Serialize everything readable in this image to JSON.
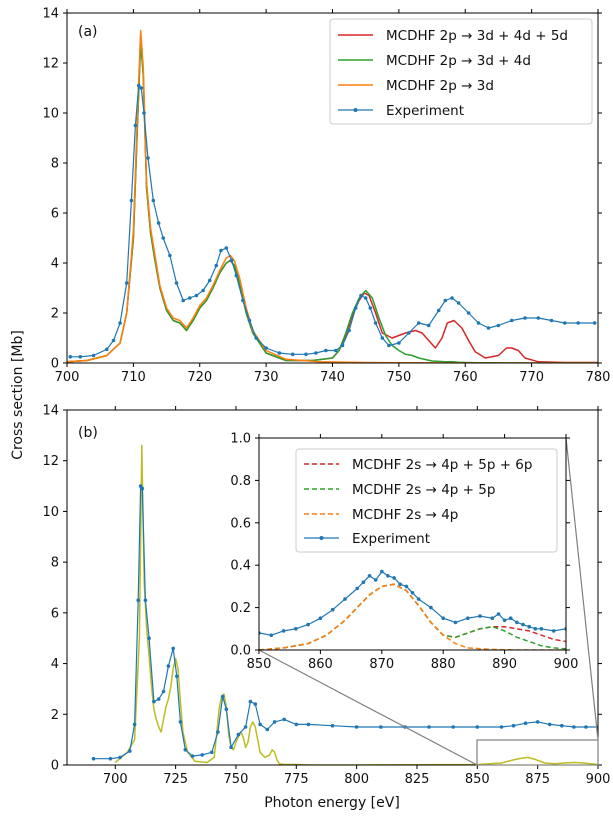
{
  "colors": {
    "n5": "#d62728",
    "n4": "#2ca02c",
    "n3": "#ff7f0e",
    "exp": "#1f77b4",
    "overview": "#bcbd22",
    "axis": "#000000",
    "zoom": "#808080"
  },
  "shared": {
    "ylabel": "Cross section [Mb]",
    "xlabel": "Photon energy [eV]"
  },
  "chart_data": [
    {
      "type": "line",
      "panel_label": "(a)",
      "xlim": [
        700,
        780
      ],
      "ylim": [
        0,
        14
      ],
      "xticks": [
        700,
        710,
        720,
        730,
        740,
        750,
        760,
        770,
        780
      ],
      "yticks": [
        0,
        2,
        4,
        6,
        8,
        10,
        12,
        14
      ],
      "grid": false,
      "legend_position": "top-right",
      "legend": [
        "MCDHF 2p → 3d + 4d + 5d",
        "MCDHF 2p → 3d + 4d",
        "MCDHF 2p → 3d",
        "Experiment"
      ],
      "series": [
        {
          "name": "MCDHF 2p → 3d + 4d + 5d",
          "color": "#d62728",
          "x": [
            700,
            703,
            706,
            708,
            709,
            710,
            710.6,
            711.1,
            711.5,
            712,
            712.6,
            713.2,
            714,
            715,
            716,
            717,
            718,
            719,
            720,
            721,
            722,
            723,
            724,
            724.6,
            725.2,
            726,
            727,
            728,
            730,
            733,
            737,
            740,
            741,
            742,
            743,
            744,
            744.8,
            745.5,
            746.5,
            747.5,
            749,
            751,
            752.5,
            753.5,
            754.5,
            755.5,
            756.5,
            757.3,
            758.3,
            759.5,
            760.5,
            761.5,
            763,
            765,
            766.2,
            767,
            768,
            769,
            771,
            775,
            780
          ],
          "y": [
            0.05,
            0.1,
            0.3,
            0.8,
            2,
            5,
            9.5,
            13.1,
            11.5,
            7,
            5.2,
            4.2,
            3,
            2.1,
            1.7,
            1.6,
            1.3,
            1.7,
            2.2,
            2.5,
            3,
            3.6,
            4,
            4.1,
            3.9,
            3.2,
            2,
            1.2,
            0.4,
            0.1,
            0.1,
            0.2,
            0.5,
            1.1,
            1.9,
            2.5,
            2.8,
            2.7,
            2,
            1.2,
            1,
            1.2,
            1.3,
            1.2,
            0.9,
            0.6,
            1,
            1.6,
            1.7,
            1.4,
            0.9,
            0.45,
            0.2,
            0.3,
            0.6,
            0.6,
            0.5,
            0.2,
            0.05,
            0.02,
            0.02
          ]
        },
        {
          "name": "MCDHF 2p → 3d + 4d",
          "color": "#2ca02c",
          "x": [
            700,
            703,
            706,
            708,
            709,
            710,
            710.6,
            711.1,
            711.5,
            712,
            712.6,
            713.2,
            714,
            715,
            716,
            717,
            718,
            719,
            720,
            721,
            722,
            723,
            724,
            724.6,
            725.2,
            726,
            727,
            728,
            730,
            733,
            737,
            740,
            741,
            742,
            743,
            744,
            745,
            746,
            747,
            748,
            749,
            750,
            751,
            752,
            753,
            755,
            757,
            758,
            759,
            760,
            762,
            765,
            770,
            780
          ],
          "y": [
            0.05,
            0.1,
            0.3,
            0.8,
            2,
            5,
            9.5,
            12.8,
            11.5,
            7,
            5.2,
            4.2,
            3,
            2.1,
            1.7,
            1.6,
            1.3,
            1.7,
            2.2,
            2.5,
            3,
            3.6,
            4,
            4.1,
            3.9,
            3.2,
            2,
            1.2,
            0.4,
            0.1,
            0.1,
            0.2,
            0.5,
            1.2,
            2,
            2.6,
            2.9,
            2.6,
            1.8,
            1.1,
            0.7,
            0.5,
            0.35,
            0.3,
            0.2,
            0.08,
            0.05,
            0.05,
            0.03,
            0.02,
            0.01,
            0.01,
            0,
            0
          ]
        },
        {
          "name": "MCDHF 2p → 3d",
          "color": "#ff7f0e",
          "x": [
            700,
            703,
            706,
            708,
            709,
            710,
            710.6,
            711.1,
            711.5,
            712,
            712.6,
            713.2,
            714,
            715,
            716,
            717,
            718,
            719,
            720,
            721,
            722,
            723,
            724,
            724.6,
            725.2,
            726,
            727,
            728,
            730,
            733,
            738,
            745,
            760,
            780
          ],
          "y": [
            0.05,
            0.1,
            0.3,
            0.8,
            2,
            5.3,
            10,
            13.3,
            11.8,
            7.2,
            5.4,
            4.4,
            3.1,
            2.2,
            1.8,
            1.7,
            1.4,
            1.8,
            2.3,
            2.6,
            3.1,
            3.7,
            4.2,
            4.3,
            4.1,
            3.4,
            2.2,
            1.3,
            0.5,
            0.15,
            0.05,
            0.02,
            0,
            0
          ]
        },
        {
          "name": "Experiment",
          "color": "#1f77b4",
          "markers": true,
          "x": [
            700.5,
            702,
            704,
            706,
            707,
            708,
            709,
            709.7,
            710.3,
            710.8,
            711.2,
            711.6,
            712.2,
            713,
            713.8,
            714.5,
            715.5,
            716.5,
            717.5,
            718.5,
            719.5,
            720.5,
            721.5,
            722.5,
            723.2,
            724,
            724.8,
            725.5,
            726.5,
            727.5,
            728.5,
            730,
            732,
            734,
            736,
            737.5,
            739,
            740.5,
            741.5,
            742.5,
            743.5,
            744.3,
            745,
            745.7,
            746.5,
            747.5,
            748.5,
            750,
            751.5,
            753,
            754.5,
            756,
            757,
            758,
            759,
            760.5,
            762,
            763.5,
            765,
            767,
            769,
            771,
            773,
            775,
            777,
            779.5
          ],
          "y": [
            0.25,
            0.25,
            0.3,
            0.55,
            0.9,
            1.6,
            3.2,
            6.5,
            9.5,
            11.1,
            11,
            10,
            8.2,
            6.5,
            5.6,
            5,
            4.3,
            3.2,
            2.5,
            2.6,
            2.7,
            2.9,
            3.3,
            3.9,
            4.5,
            4.6,
            4.1,
            3.5,
            2.5,
            1.7,
            1,
            0.6,
            0.4,
            0.35,
            0.35,
            0.4,
            0.5,
            0.5,
            0.7,
            1.3,
            2.2,
            2.7,
            2.6,
            2.2,
            1.6,
            1,
            0.7,
            0.8,
            1.2,
            1.6,
            1.5,
            2.1,
            2.5,
            2.6,
            2.4,
            2,
            1.6,
            1.4,
            1.5,
            1.7,
            1.8,
            1.8,
            1.7,
            1.6,
            1.6,
            1.6
          ]
        }
      ]
    },
    {
      "type": "line",
      "panel_label": "(b)",
      "xlim": [
        680,
        900
      ],
      "ylim": [
        0,
        14
      ],
      "xticks": [
        700,
        725,
        750,
        775,
        800,
        825,
        850,
        875,
        900
      ],
      "yticks": [
        0,
        2,
        4,
        6,
        8,
        10,
        12,
        14
      ],
      "grid": false,
      "series": [
        {
          "color": "#bcbd22",
          "x": [
            700,
            705,
            708,
            710,
            711,
            712,
            713,
            714,
            715,
            716,
            717,
            718,
            719,
            720,
            721,
            722,
            723,
            724,
            725,
            726,
            727,
            728,
            730,
            733,
            738,
            741,
            742,
            743,
            744,
            745,
            746,
            747,
            748,
            749,
            750,
            751,
            752,
            753,
            754,
            755,
            756,
            757,
            758,
            759,
            760,
            762,
            764,
            765,
            766,
            767,
            768,
            770,
            775,
            780,
            800,
            850,
            860,
            865,
            868,
            871,
            874,
            878,
            882,
            886,
            890,
            894,
            898,
            900
          ],
          "y": [
            0.1,
            0.5,
            1,
            5,
            12.6,
            7.2,
            5.4,
            4.3,
            3.1,
            2.2,
            1.8,
            1.5,
            1.3,
            1.8,
            2.3,
            2.6,
            3.1,
            3.8,
            4.2,
            3.8,
            2.5,
            1.3,
            0.5,
            0.15,
            0.1,
            0.3,
            1.2,
            2.2,
            2.7,
            2.8,
            2.3,
            1.2,
            0.7,
            0.6,
            0.9,
            1.1,
            1.3,
            1.1,
            0.7,
            0.9,
            1.5,
            1.7,
            1.5,
            1,
            0.5,
            0.3,
            0.4,
            0.6,
            0.5,
            0.2,
            0.05,
            0.02,
            0.02,
            0,
            0,
            0.02,
            0.08,
            0.2,
            0.26,
            0.3,
            0.22,
            0.08,
            0.05,
            0.08,
            0.1,
            0.08,
            0.04,
            0.02
          ]
        },
        {
          "name": "Experiment",
          "color": "#1f77b4",
          "markers": true,
          "x": [
            691,
            698,
            702,
            706,
            708,
            709.5,
            710.5,
            711.2,
            712.5,
            714,
            716,
            718,
            720,
            722,
            724,
            725.5,
            727,
            729,
            732,
            736,
            740,
            742.5,
            744.5,
            746,
            748,
            751,
            754,
            756,
            758,
            760,
            763,
            766,
            770,
            775,
            780,
            790,
            800,
            810,
            820,
            830,
            840,
            850,
            860,
            865,
            870,
            875,
            880,
            885,
            890,
            895,
            900
          ],
          "y": [
            0.25,
            0.25,
            0.3,
            0.55,
            1.6,
            6.5,
            11,
            10.9,
            6.5,
            5,
            2.5,
            2.6,
            2.9,
            3.9,
            4.6,
            3.5,
            1.7,
            0.6,
            0.35,
            0.4,
            0.5,
            1.3,
            2.7,
            2.2,
            0.7,
            1.2,
            1.5,
            2.5,
            2.4,
            1.6,
            1.4,
            1.7,
            1.8,
            1.6,
            1.6,
            1.55,
            1.5,
            1.5,
            1.5,
            1.5,
            1.5,
            1.5,
            1.5,
            1.55,
            1.65,
            1.7,
            1.6,
            1.55,
            1.5,
            1.5,
            1.5
          ]
        }
      ]
    },
    {
      "type": "line",
      "panel_label": "inset",
      "xlim": [
        850,
        900
      ],
      "ylim": [
        0,
        1
      ],
      "xticks": [
        850,
        860,
        870,
        880,
        890,
        900
      ],
      "yticks": [
        0.0,
        0.2,
        0.4,
        0.6,
        0.8,
        1.0
      ],
      "yticklabels": [
        "0.0",
        "0.2",
        "0.4",
        "0.6",
        "0.8",
        "1.0"
      ],
      "grid": false,
      "legend_position": "top",
      "legend": [
        "MCDHF 2s → 4p + 5p + 6p",
        "MCDHF 2s → 4p + 5p",
        "MCDHF 2s → 4p",
        "Experiment"
      ],
      "series": [
        {
          "name": "MCDHF 2s → 4p + 5p + 6p",
          "color": "#d62728",
          "dashed": true,
          "x": [
            850,
            854,
            858,
            861,
            864,
            866,
            868,
            870,
            872,
            874,
            876,
            878,
            880,
            882,
            884,
            886,
            888,
            890,
            892,
            894,
            896,
            898,
            900
          ],
          "y": [
            0,
            0.01,
            0.03,
            0.07,
            0.14,
            0.2,
            0.26,
            0.3,
            0.31,
            0.28,
            0.21,
            0.13,
            0.07,
            0.06,
            0.08,
            0.1,
            0.11,
            0.11,
            0.1,
            0.09,
            0.07,
            0.05,
            0.04
          ]
        },
        {
          "name": "MCDHF 2s → 4p + 5p",
          "color": "#2ca02c",
          "dashed": true,
          "x": [
            850,
            854,
            858,
            861,
            864,
            866,
            868,
            870,
            872,
            874,
            876,
            878,
            880,
            882,
            884,
            886,
            888,
            890,
            892,
            894,
            896,
            898,
            900
          ],
          "y": [
            0,
            0.01,
            0.03,
            0.07,
            0.14,
            0.2,
            0.26,
            0.3,
            0.31,
            0.28,
            0.21,
            0.13,
            0.07,
            0.06,
            0.08,
            0.1,
            0.11,
            0.09,
            0.06,
            0.04,
            0.02,
            0.01,
            0.005
          ]
        },
        {
          "name": "MCDHF 2s → 4p",
          "color": "#ff7f0e",
          "dashed": true,
          "x": [
            850,
            854,
            858,
            861,
            864,
            866,
            868,
            870,
            872,
            874,
            876,
            878,
            880,
            882,
            884,
            888,
            892,
            896,
            900
          ],
          "y": [
            0,
            0.01,
            0.03,
            0.07,
            0.14,
            0.2,
            0.26,
            0.3,
            0.31,
            0.28,
            0.21,
            0.13,
            0.07,
            0.03,
            0.01,
            0.003,
            0,
            0,
            0
          ]
        },
        {
          "name": "Experiment",
          "color": "#1f77b4",
          "markers": true,
          "x": [
            850,
            852,
            854,
            856,
            858,
            860,
            862,
            864,
            866,
            867,
            868,
            869,
            870,
            871,
            872,
            873,
            874,
            875,
            876,
            878,
            880,
            882,
            884,
            886,
            888,
            889,
            890,
            891,
            892,
            893,
            894,
            895,
            896,
            898,
            900
          ],
          "y": [
            0.08,
            0.07,
            0.09,
            0.1,
            0.12,
            0.15,
            0.19,
            0.24,
            0.29,
            0.32,
            0.35,
            0.33,
            0.37,
            0.35,
            0.34,
            0.31,
            0.3,
            0.27,
            0.24,
            0.2,
            0.15,
            0.13,
            0.15,
            0.16,
            0.15,
            0.17,
            0.14,
            0.15,
            0.13,
            0.12,
            0.11,
            0.1,
            0.1,
            0.09,
            0.1
          ]
        }
      ]
    }
  ]
}
